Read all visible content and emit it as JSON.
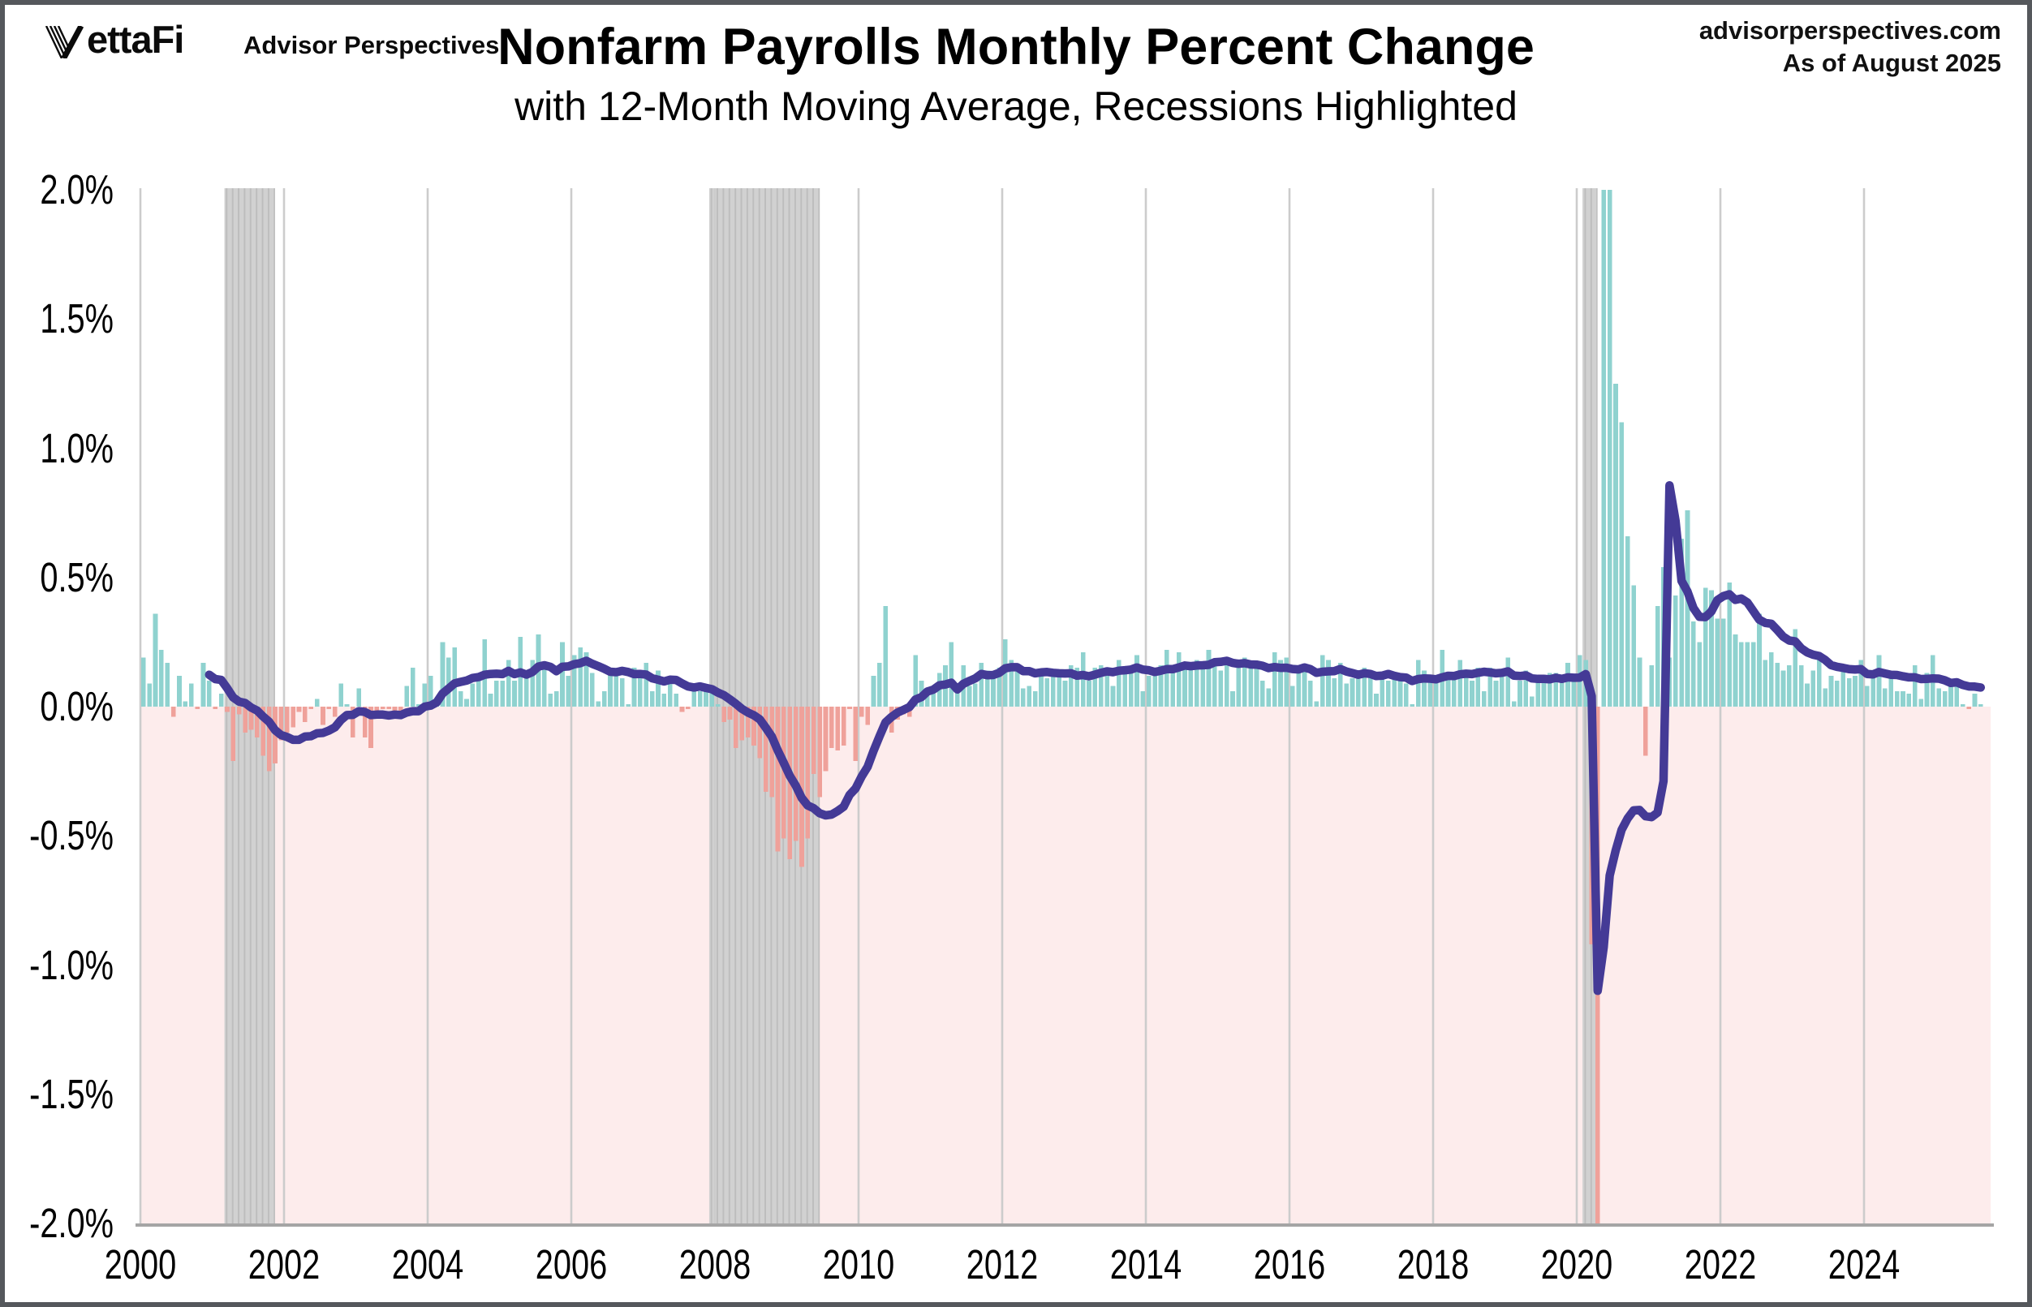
{
  "header": {
    "logo_text": "ettaFi",
    "logo_name": "VettaFi",
    "logo_tagline": "Advisor Perspectives",
    "title": "Nonfarm Payrolls Monthly Percent Change",
    "subtitle": "with 12-Month Moving Average, Recessions Highlighted",
    "source_line1": "advisorperspectives.com",
    "source_line2": "As of August 2025"
  },
  "chart_data": {
    "type": "bar",
    "title": "Nonfarm Payrolls Monthly Percent Change",
    "subtitle": "with 12-Month Moving Average, Recessions Highlighted",
    "x_start_year": 2000,
    "x_start_month": 1,
    "x_end_year": 2025,
    "x_end_month": 8,
    "ylim": [
      -2.0,
      2.0
    ],
    "grid": "vertical-every-2-years",
    "legend": "none",
    "y_ticks": [
      {
        "v": 2.0,
        "label": "2.0%"
      },
      {
        "v": 1.5,
        "label": "1.5%"
      },
      {
        "v": 1.0,
        "label": "1.0%"
      },
      {
        "v": 0.5,
        "label": "0.5%"
      },
      {
        "v": 0.0,
        "label": "0.0%"
      },
      {
        "v": -0.5,
        "label": "-0.5%"
      },
      {
        "v": -1.0,
        "label": "-1.0%"
      },
      {
        "v": -1.5,
        "label": "-1.5%"
      },
      {
        "v": -2.0,
        "label": "-2.0%"
      }
    ],
    "x_ticks": [
      2000,
      2002,
      2004,
      2006,
      2008,
      2010,
      2012,
      2014,
      2016,
      2018,
      2020,
      2022,
      2024
    ],
    "recessions": [
      {
        "name": "2001 recession",
        "start": 2001.17,
        "end": 2001.875
      },
      {
        "name": "2008-09 recession",
        "start": 2007.92,
        "end": 2009.46
      },
      {
        "name": "2020 recession",
        "start": 2020.08,
        "end": 2020.29
      }
    ],
    "series": [
      {
        "name": "Monthly percent change",
        "type": "bar",
        "clip_to_ylim": true,
        "values": [
          0.19,
          0.09,
          0.36,
          0.22,
          0.17,
          -0.04,
          0.12,
          0.02,
          0.09,
          -0.01,
          0.17,
          0.1,
          -0.01,
          0.05,
          -0.02,
          -0.21,
          -0.03,
          -0.1,
          -0.09,
          -0.12,
          -0.19,
          -0.25,
          -0.22,
          -0.13,
          -0.1,
          -0.08,
          -0.02,
          -0.06,
          -0.01,
          0.03,
          -0.07,
          -0.01,
          -0.04,
          0.09,
          0.01,
          -0.12,
          0.07,
          -0.12,
          -0.16,
          -0.04,
          -0.01,
          -0.01,
          -0.03,
          -0.03,
          0.08,
          0.15,
          0.01,
          0.09,
          0.12,
          0.03,
          0.25,
          0.19,
          0.23,
          0.06,
          0.03,
          0.09,
          0.12,
          0.26,
          0.05,
          0.1,
          0.1,
          0.18,
          0.1,
          0.27,
          0.13,
          0.18,
          0.28,
          0.15,
          0.05,
          0.06,
          0.25,
          0.12,
          0.2,
          0.23,
          0.21,
          0.13,
          0.02,
          0.06,
          0.14,
          0.13,
          0.11,
          0.01,
          0.15,
          0.13,
          0.17,
          0.06,
          0.14,
          0.05,
          0.1,
          0.05,
          -0.02,
          -0.01,
          0.06,
          0.06,
          0.08,
          0.07,
          0.01,
          -0.06,
          -0.05,
          -0.16,
          -0.13,
          -0.12,
          -0.15,
          -0.2,
          -0.33,
          -0.35,
          -0.56,
          -0.51,
          -0.59,
          -0.52,
          -0.62,
          -0.51,
          -0.26,
          -0.35,
          -0.25,
          -0.16,
          -0.17,
          -0.15,
          -0.01,
          -0.21,
          -0.04,
          -0.07,
          0.12,
          0.17,
          0.39,
          -0.1,
          -0.05,
          -0.03,
          -0.04,
          0.2,
          0.1,
          0.05,
          0.05,
          0.13,
          0.16,
          0.25,
          0.08,
          0.16,
          0.08,
          0.09,
          0.17,
          0.14,
          0.11,
          0.15,
          0.26,
          0.18,
          0.16,
          0.07,
          0.08,
          0.06,
          0.12,
          0.11,
          0.13,
          0.12,
          0.1,
          0.16,
          0.15,
          0.21,
          0.1,
          0.15,
          0.16,
          0.13,
          0.08,
          0.18,
          0.15,
          0.15,
          0.2,
          0.06,
          0.12,
          0.13,
          0.16,
          0.22,
          0.16,
          0.21,
          0.17,
          0.15,
          0.18,
          0.16,
          0.22,
          0.18,
          0.14,
          0.18,
          0.06,
          0.18,
          0.19,
          0.15,
          0.16,
          0.1,
          0.07,
          0.21,
          0.18,
          0.19,
          0.08,
          0.16,
          0.15,
          0.1,
          0.02,
          0.2,
          0.18,
          0.11,
          0.17,
          0.09,
          0.11,
          0.11,
          0.15,
          0.13,
          0.05,
          0.12,
          0.1,
          0.11,
          0.12,
          0.09,
          0.01,
          0.18,
          0.14,
          0.1,
          0.12,
          0.22,
          0.12,
          0.11,
          0.18,
          0.14,
          0.1,
          0.15,
          0.06,
          0.15,
          0.1,
          0.12,
          0.19,
          0.02,
          0.1,
          0.14,
          0.04,
          0.12,
          0.1,
          0.13,
          0.13,
          0.1,
          0.17,
          0.1,
          0.2,
          0.18,
          -0.92,
          -13.55,
          2.07,
          3.45,
          1.25,
          1.1,
          0.66,
          0.47,
          0.19,
          -0.19,
          0.16,
          0.39,
          0.54,
          0.19,
          0.43,
          0.65,
          0.76,
          0.33,
          0.25,
          0.46,
          0.45,
          0.34,
          0.34,
          0.48,
          0.28,
          0.25,
          0.25,
          0.25,
          0.36,
          0.18,
          0.21,
          0.17,
          0.14,
          0.16,
          0.3,
          0.16,
          0.09,
          0.14,
          0.19,
          0.07,
          0.12,
          0.1,
          0.16,
          0.11,
          0.12,
          0.18,
          0.08,
          0.14,
          0.2,
          0.07,
          0.13,
          0.06,
          0.06,
          0.05,
          0.16,
          0.03,
          0.13,
          0.2,
          0.07,
          0.06,
          0.08,
          0.1,
          0.01,
          -0.01,
          0.05,
          0.01
        ]
      },
      {
        "name": "12-Month Moving Average",
        "type": "line",
        "derived": "trailing_12_month_mean_of_bar_series"
      }
    ],
    "colors": {
      "bar_positive": "#8fd2cf",
      "bar_negative": "#efa19a",
      "below_zero_background": "#fdecec",
      "recession_band": "#d1d1d1",
      "recession_band_stripe": "#bdbdbd",
      "gridline": "#cccccc",
      "moving_average_line": "#443a96",
      "axis_line": "#a5a5a5",
      "page_border": "#55585c",
      "text": "#000000"
    }
  }
}
